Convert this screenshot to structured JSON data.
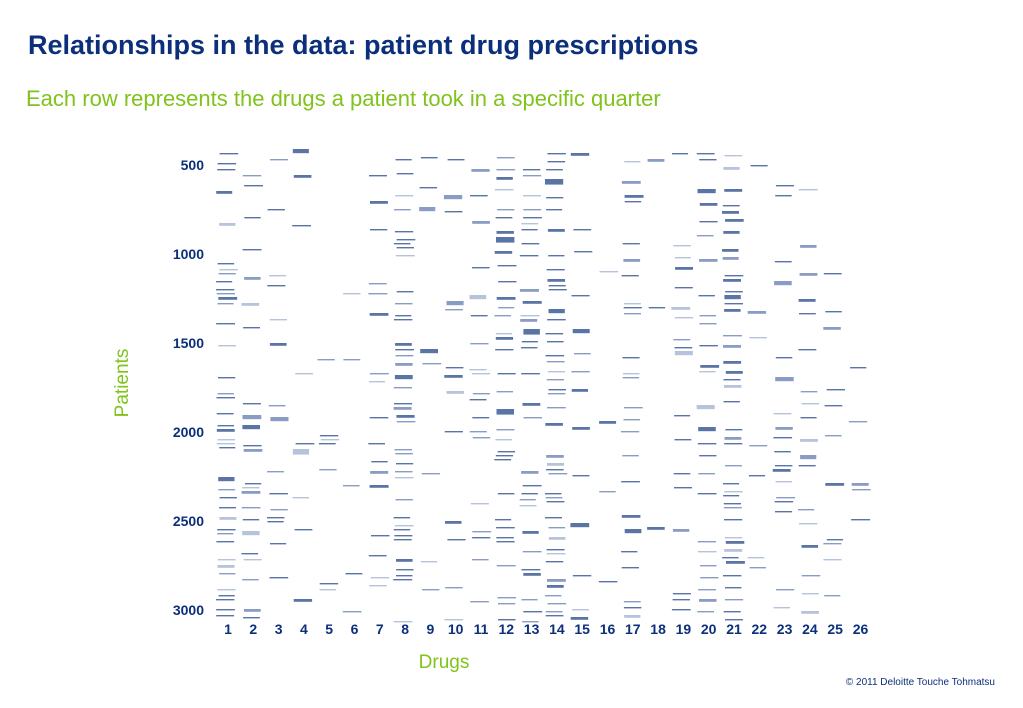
{
  "title": "Relationships in the data: patient drug prescriptions",
  "subtitle": "Each row represents the drugs a patient took in a specific quarter",
  "copyright": "© 2011 Deloitte Touche Tohmatsu",
  "colors": {
    "title": "#0b2f7a",
    "accent": "#7fc31c",
    "mark": "#5b74a6"
  },
  "chart_data": {
    "type": "heatmap",
    "xlabel": "Drugs",
    "ylabel": "Patients",
    "x_categories": [
      "1",
      "2",
      "3",
      "4",
      "5",
      "6",
      "7",
      "8",
      "9",
      "10",
      "11",
      "12",
      "13",
      "14",
      "15",
      "16",
      "17",
      "18",
      "19",
      "20",
      "21",
      "22",
      "23",
      "24",
      "25",
      "26"
    ],
    "y_ticks": [
      500,
      1000,
      1500,
      2000,
      2500,
      3000
    ],
    "ylim": [
      400,
      3060
    ],
    "grid": false,
    "legend": "none",
    "density_per_drug": [
      0.16,
      0.1,
      0.06,
      0.02,
      0.03,
      0.01,
      0.1,
      0.15,
      0.04,
      0.05,
      0.07,
      0.17,
      0.16,
      0.2,
      0.07,
      0.01,
      0.09,
      0.02,
      0.08,
      0.09,
      0.22,
      0.04,
      0.09,
      0.08,
      0.07,
      0.03
    ]
  }
}
